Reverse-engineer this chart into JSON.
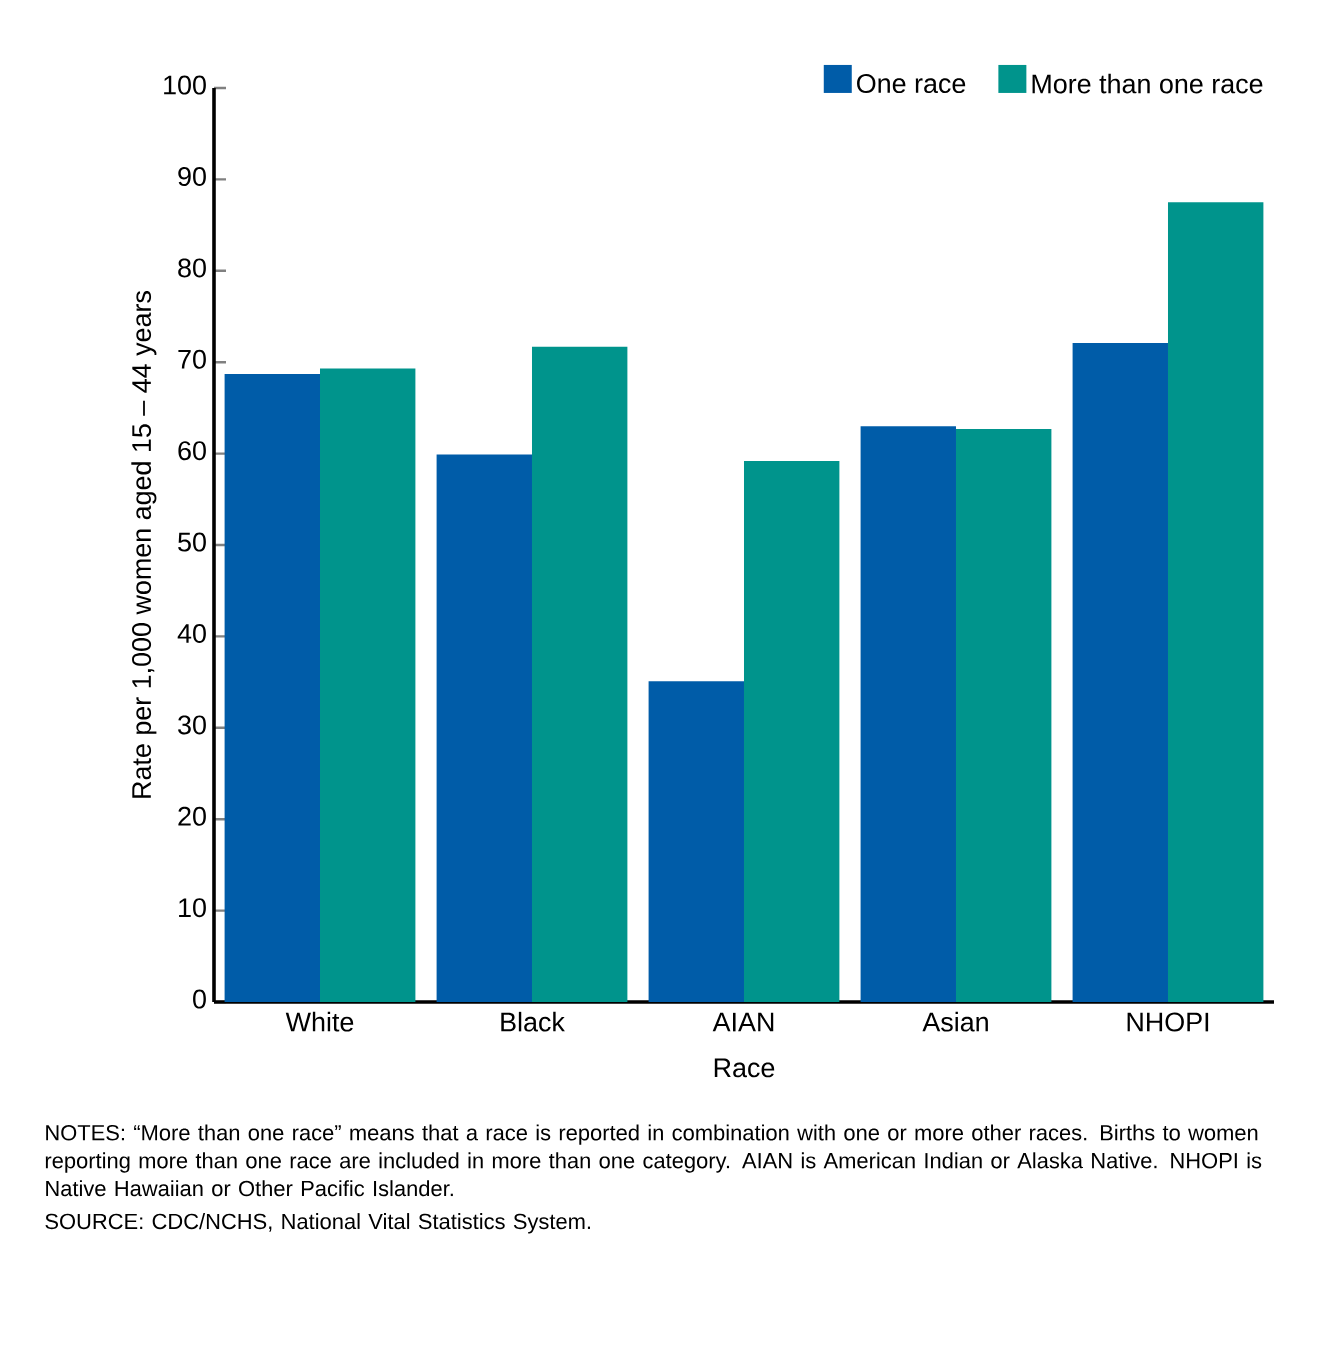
{
  "chart_data": {
    "type": "bar",
    "xlabel": "Race",
    "ylabel": "Rate per 1,000 women aged 15 – 44 years",
    "categories": [
      "White",
      "Black",
      "AIAN",
      "Asian",
      "NHOPI"
    ],
    "series": [
      {
        "name": "One race",
        "color": "#005ca8",
        "values": [
          68.7,
          59.9,
          35.1,
          63.0,
          72.1
        ]
      },
      {
        "name": "More than one race",
        "color": "#00948c",
        "values": [
          69.3,
          71.7,
          59.2,
          62.7,
          87.5
        ]
      }
    ],
    "ylim": [
      0,
      100
    ],
    "yticks": [
      0,
      10,
      20,
      30,
      40,
      50,
      60,
      70,
      80,
      90,
      100
    ],
    "grid": false,
    "legend": "top right",
    "annotations": [
      "NOTES: “More than one race” means that a race is reported in combination with one or more other races. Births to women reporting more than one race are included in more than one category. AIAN is American Indian or Alaska Native. NHOPI is Native Hawaiian or Other Pacific Islander.",
      "SOURCE: CDC/NCHS, National Vital Statistics System."
    ]
  }
}
